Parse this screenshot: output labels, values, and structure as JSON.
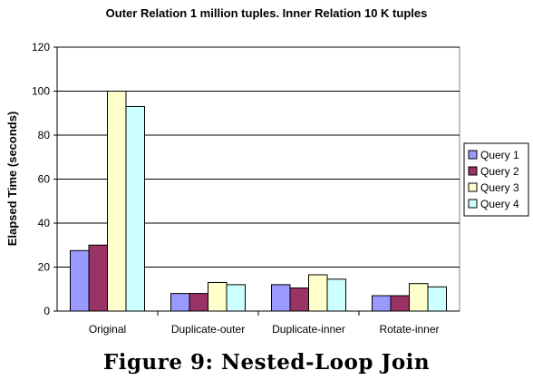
{
  "caption": "Figure 9: Nested-Loop Join",
  "chart_data": {
    "type": "bar",
    "title": "Outer Relation 1 million tuples. Inner Relation 10 K tuples",
    "xlabel": "",
    "ylabel": "Elapsed Time (seconds)",
    "ylim": [
      0,
      120
    ],
    "yticks": [
      0,
      20,
      40,
      60,
      80,
      100,
      120
    ],
    "grid": true,
    "legend_position": "right",
    "categories": [
      "Original",
      "Duplicate-outer",
      "Duplicate-inner",
      "Rotate-inner"
    ],
    "series": [
      {
        "name": "Query 1",
        "color": "#9999ff",
        "values": [
          27.5,
          8,
          12,
          7
        ]
      },
      {
        "name": "Query 2",
        "color": "#993366",
        "values": [
          30,
          8,
          10.5,
          7
        ]
      },
      {
        "name": "Query 3",
        "color": "#ffffcc",
        "values": [
          100,
          13,
          16.5,
          12.5
        ]
      },
      {
        "name": "Query 4",
        "color": "#ccffff",
        "values": [
          93,
          12,
          14.5,
          11
        ]
      }
    ]
  }
}
